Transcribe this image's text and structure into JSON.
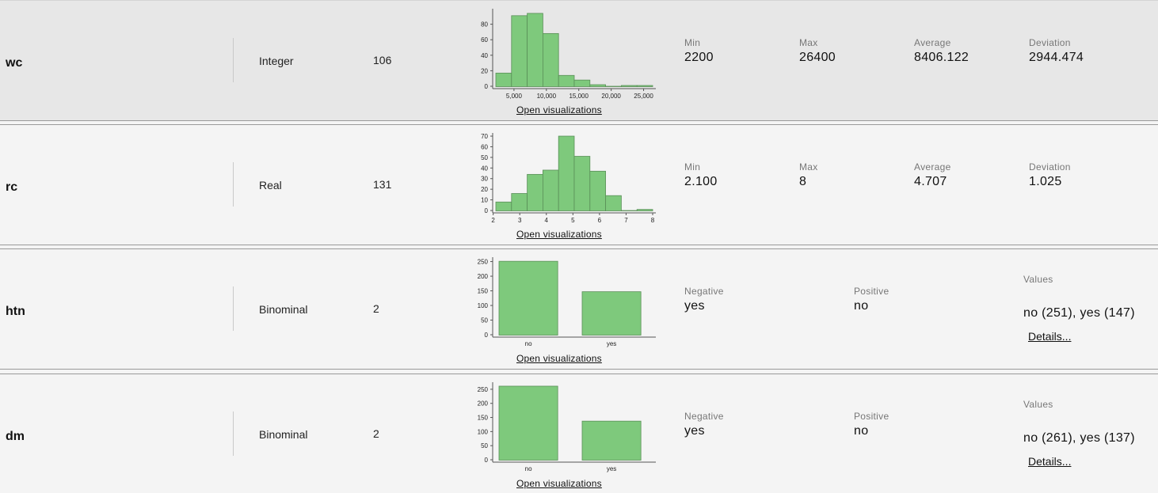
{
  "rows": [
    {
      "name": "wc",
      "type": "Integer",
      "missing": "106",
      "open_visualizations": "Open visualizations",
      "stats": [
        {
          "label": "Min",
          "value": "2200"
        },
        {
          "label": "Max",
          "value": "26400"
        },
        {
          "label": "Average",
          "value": "8406.122"
        },
        {
          "label": "Deviation",
          "value": "2944.474"
        }
      ]
    },
    {
      "name": "rc",
      "type": "Real",
      "missing": "131",
      "open_visualizations": "Open visualizations",
      "stats": [
        {
          "label": "Min",
          "value": "2.100"
        },
        {
          "label": "Max",
          "value": "8"
        },
        {
          "label": "Average",
          "value": "4.707"
        },
        {
          "label": "Deviation",
          "value": "1.025"
        }
      ]
    },
    {
      "name": "htn",
      "type": "Binominal",
      "missing": "2",
      "open_visualizations": "Open visualizations",
      "negative_label": "Negative",
      "negative_value": "yes",
      "positive_label": "Positive",
      "positive_value": "no",
      "values_label": "Values",
      "values_text": "no (251), yes (147)",
      "details": "Details..."
    },
    {
      "name": "dm",
      "type": "Binominal",
      "missing": "2",
      "open_visualizations": "Open visualizations",
      "negative_label": "Negative",
      "negative_value": "yes",
      "positive_label": "Positive",
      "positive_value": "no",
      "values_label": "Values",
      "values_text": "no (261), yes (137)",
      "details": "Details..."
    }
  ],
  "chart_data": [
    {
      "type": "bar",
      "title": "",
      "bar_color": "#7ec97c",
      "x_ticks": [
        "5,000",
        "10,000",
        "15,000",
        "20,000",
        "25,000"
      ],
      "y_ticks": [
        "0",
        "20",
        "40",
        "60",
        "80"
      ],
      "ylim": [
        0,
        100
      ],
      "bins": [
        {
          "from": 2200,
          "to": 4620,
          "value": 17
        },
        {
          "from": 4620,
          "to": 7040,
          "value": 91
        },
        {
          "from": 7040,
          "to": 9460,
          "value": 94
        },
        {
          "from": 9460,
          "to": 11880,
          "value": 68
        },
        {
          "from": 11880,
          "to": 14300,
          "value": 14
        },
        {
          "from": 14300,
          "to": 16720,
          "value": 8
        },
        {
          "from": 16720,
          "to": 19140,
          "value": 2
        },
        {
          "from": 19140,
          "to": 21560,
          "value": 0
        },
        {
          "from": 21560,
          "to": 23980,
          "value": 1
        },
        {
          "from": 23980,
          "to": 26400,
          "value": 1
        }
      ]
    },
    {
      "type": "bar",
      "title": "",
      "bar_color": "#7ec97c",
      "x_ticks": [
        "2",
        "3",
        "4",
        "5",
        "6",
        "7",
        "8"
      ],
      "y_ticks": [
        "0",
        "10",
        "20",
        "30",
        "40",
        "50",
        "60",
        "70"
      ],
      "ylim": [
        0,
        73
      ],
      "bins": [
        {
          "from": 2.1,
          "to": 2.69,
          "value": 8
        },
        {
          "from": 2.69,
          "to": 3.28,
          "value": 16
        },
        {
          "from": 3.28,
          "to": 3.87,
          "value": 34
        },
        {
          "from": 3.87,
          "to": 4.46,
          "value": 38
        },
        {
          "from": 4.46,
          "to": 5.05,
          "value": 70
        },
        {
          "from": 5.05,
          "to": 5.64,
          "value": 51
        },
        {
          "from": 5.64,
          "to": 6.23,
          "value": 37
        },
        {
          "from": 6.23,
          "to": 6.82,
          "value": 14
        },
        {
          "from": 6.82,
          "to": 7.41,
          "value": 0
        },
        {
          "from": 7.41,
          "to": 8.0,
          "value": 1
        }
      ]
    },
    {
      "type": "bar",
      "title": "",
      "bar_color": "#7ec97c",
      "categories": [
        "no",
        "yes"
      ],
      "values": [
        251,
        147
      ],
      "y_ticks": [
        "0",
        "50",
        "100",
        "150",
        "200",
        "250"
      ],
      "ylim": [
        0,
        265
      ]
    },
    {
      "type": "bar",
      "title": "",
      "bar_color": "#7ec97c",
      "categories": [
        "no",
        "yes"
      ],
      "values": [
        261,
        137
      ],
      "y_ticks": [
        "0",
        "50",
        "100",
        "150",
        "200",
        "250"
      ],
      "ylim": [
        0,
        275
      ]
    }
  ]
}
